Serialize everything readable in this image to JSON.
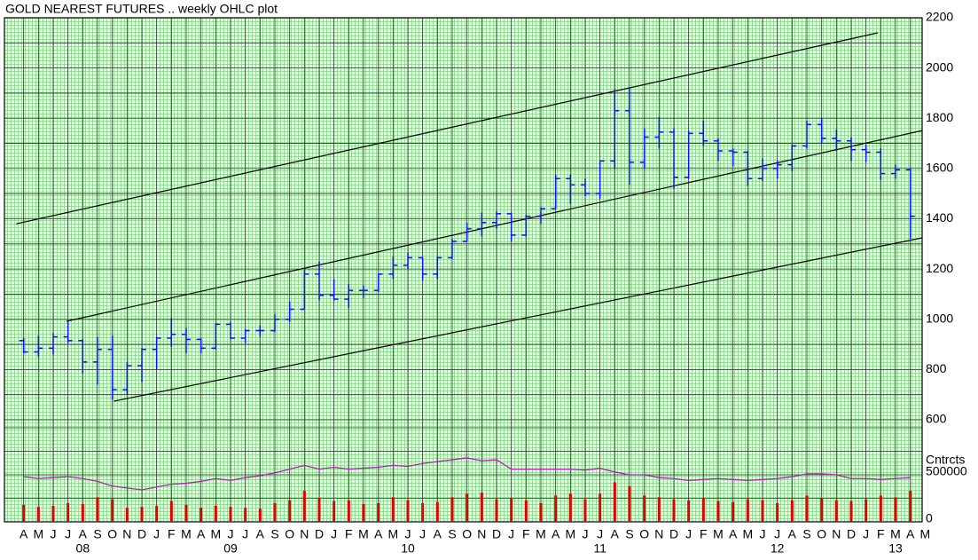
{
  "chart_data": {
    "type": "ohlc",
    "title": "GOLD NEAREST FUTURES .. weekly OHLC plot",
    "categories": [
      "A",
      "M",
      "J",
      "J",
      "A",
      "S",
      "O",
      "N",
      "D",
      "J",
      "F",
      "M",
      "A",
      "M",
      "J",
      "J",
      "A",
      "S",
      "O",
      "N",
      "D",
      "J",
      "F",
      "M",
      "A",
      "M",
      "J",
      "J",
      "A",
      "S",
      "O",
      "N",
      "D",
      "J",
      "F",
      "M",
      "A",
      "M",
      "J",
      "J",
      "A",
      "S",
      "O",
      "N",
      "D",
      "J",
      "F",
      "M",
      "A",
      "M",
      "J",
      "J",
      "A",
      "S",
      "O",
      "N",
      "D",
      "J",
      "F",
      "M",
      "A",
      "M"
    ],
    "year_labels": [
      null,
      null,
      null,
      null,
      "08",
      null,
      null,
      null,
      null,
      null,
      null,
      null,
      null,
      null,
      "09",
      null,
      null,
      null,
      null,
      null,
      null,
      null,
      null,
      null,
      null,
      null,
      "10",
      null,
      null,
      null,
      null,
      null,
      null,
      null,
      null,
      null,
      null,
      null,
      null,
      "11",
      null,
      null,
      null,
      null,
      null,
      null,
      null,
      null,
      null,
      null,
      null,
      "12",
      null,
      null,
      null,
      null,
      null,
      null,
      null,
      "13",
      null,
      null
    ],
    "open": [
      915,
      870,
      885,
      930,
      915,
      830,
      880,
      720,
      815,
      880,
      925,
      940,
      920,
      885,
      980,
      925,
      955,
      955,
      1000,
      1040,
      1180,
      1095,
      1080,
      1115,
      1115,
      1180,
      1215,
      1245,
      1180,
      1245,
      1310,
      1360,
      1385,
      1420,
      1335,
      1410,
      1440,
      1560,
      1535,
      1500,
      1630,
      1830,
      1625,
      1725,
      1745,
      1565,
      1740,
      1710,
      1670,
      1665,
      1560,
      1600,
      1615,
      1690,
      1775,
      1720,
      1710,
      1675,
      1665,
      1580,
      1595,
      null
    ],
    "high": [
      925,
      935,
      945,
      990,
      920,
      930,
      935,
      830,
      885,
      930,
      1005,
      965,
      925,
      985,
      990,
      960,
      975,
      1020,
      1070,
      1195,
      1230,
      1160,
      1140,
      1135,
      1180,
      1250,
      1265,
      1245,
      1250,
      1320,
      1385,
      1425,
      1430,
      1425,
      1415,
      1445,
      1575,
      1575,
      1560,
      1630,
      1915,
      1920,
      1760,
      1805,
      1760,
      1750,
      1790,
      1720,
      1680,
      1670,
      1640,
      1630,
      1695,
      1790,
      1800,
      1755,
      1725,
      1695,
      1680,
      1615,
      1600,
      null
    ],
    "low": [
      865,
      850,
      860,
      905,
      785,
      740,
      680,
      700,
      750,
      800,
      890,
      865,
      865,
      880,
      920,
      905,
      930,
      950,
      990,
      1040,
      1075,
      1075,
      1045,
      1085,
      1110,
      1160,
      1200,
      1155,
      1160,
      1240,
      1310,
      1330,
      1360,
      1310,
      1330,
      1380,
      1440,
      1460,
      1490,
      1480,
      1600,
      1535,
      1600,
      1680,
      1520,
      1560,
      1690,
      1630,
      1610,
      1530,
      1550,
      1560,
      1590,
      1680,
      1700,
      1670,
      1630,
      1625,
      1555,
      1560,
      1320,
      null
    ],
    "close": [
      870,
      885,
      930,
      915,
      830,
      880,
      720,
      815,
      880,
      925,
      940,
      920,
      885,
      980,
      925,
      955,
      955,
      1000,
      1040,
      1180,
      1095,
      1080,
      1115,
      1115,
      1180,
      1215,
      1245,
      1180,
      1245,
      1310,
      1360,
      1385,
      1420,
      1335,
      1410,
      1440,
      1560,
      1535,
      1500,
      1630,
      1830,
      1625,
      1725,
      1745,
      1565,
      1740,
      1710,
      1670,
      1665,
      1560,
      1600,
      1615,
      1690,
      1775,
      1720,
      1710,
      1675,
      1665,
      1580,
      1595,
      1410,
      null
    ],
    "volume": [
      180000,
      160000,
      170000,
      200000,
      190000,
      260000,
      240000,
      150000,
      160000,
      170000,
      220000,
      180000,
      150000,
      170000,
      160000,
      150000,
      140000,
      200000,
      230000,
      330000,
      250000,
      220000,
      230000,
      190000,
      200000,
      260000,
      230000,
      200000,
      210000,
      260000,
      300000,
      310000,
      240000,
      250000,
      230000,
      200000,
      280000,
      300000,
      240000,
      300000,
      420000,
      380000,
      280000,
      260000,
      240000,
      230000,
      250000,
      220000,
      210000,
      240000,
      230000,
      200000,
      230000,
      280000,
      250000,
      230000,
      220000,
      240000,
      280000,
      260000,
      330000,
      null
    ],
    "open_interest": [
      480000,
      460000,
      470000,
      480000,
      460000,
      430000,
      380000,
      360000,
      340000,
      370000,
      400000,
      410000,
      430000,
      460000,
      440000,
      470000,
      490000,
      520000,
      560000,
      600000,
      560000,
      580000,
      560000,
      570000,
      580000,
      600000,
      590000,
      620000,
      640000,
      660000,
      680000,
      650000,
      660000,
      560000,
      560000,
      560000,
      560000,
      560000,
      550000,
      570000,
      530000,
      500000,
      500000,
      470000,
      460000,
      440000,
      450000,
      460000,
      450000,
      440000,
      450000,
      460000,
      480000,
      510000,
      510000,
      500000,
      460000,
      460000,
      450000,
      460000,
      470000,
      null
    ],
    "trendlines": [
      {
        "x": [
          -0.5,
          57.8
        ],
        "y": [
          1380,
          2140
        ]
      },
      {
        "x": [
          2.9,
          60.8
        ],
        "y": [
          992,
          1751
        ]
      },
      {
        "x": [
          6.1,
          60.8
        ],
        "y": [
          674,
          1324
        ]
      }
    ],
    "xlim": [
      -1.3,
      60.8
    ],
    "ylim": [
      600,
      2200
    ],
    "yticks": [
      600,
      800,
      1000,
      1200,
      1400,
      1600,
      1800,
      2000,
      2200
    ],
    "yminor": [
      700,
      900,
      1100,
      1300,
      1500,
      1700,
      1900,
      2100
    ],
    "y2label": "Cntrcts",
    "y2lim": [
      0,
      1085000
    ],
    "y2ticks": [
      0,
      500000
    ],
    "y2minor": [
      250000,
      750000,
      1000000
    ],
    "price_color": "#1010ff",
    "volume_color": "#e00000",
    "oi_color": "#b020b0",
    "axis2_color": "#e00000"
  }
}
